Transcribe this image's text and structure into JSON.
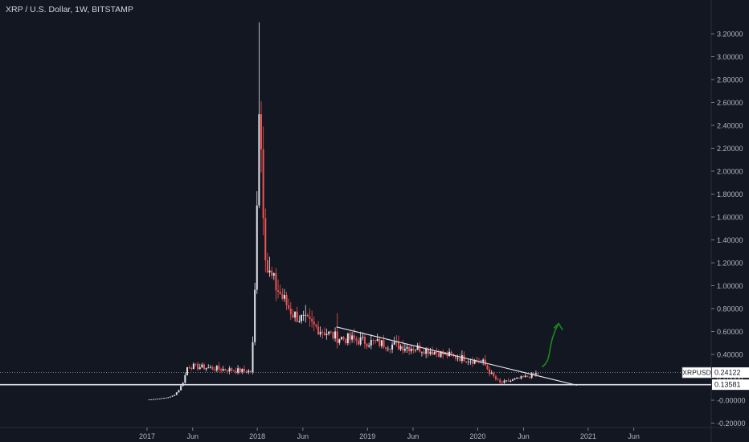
{
  "header": {
    "title": "XRP / U.S. Dollar, 1W, BITSTAMP"
  },
  "chart_data": {
    "type": "candlestick",
    "symbol": "XRPUSD",
    "interval": "1W",
    "exchange": "BITSTAMP",
    "title": "XRP / U.S. Dollar, 1W, BITSTAMP",
    "ylim": [
      -0.2,
      3.3
    ],
    "y_ticks": [
      "3.20000",
      "3.00000",
      "2.80000",
      "2.60000",
      "2.40000",
      "2.20000",
      "2.00000",
      "1.80000",
      "1.60000",
      "1.40000",
      "1.20000",
      "1.00000",
      "0.80000",
      "0.60000",
      "0.40000",
      "0.20000",
      "-0.00000",
      "-0.20000"
    ],
    "x_ticks": [
      {
        "label": "2017",
        "date": "2017-01-01"
      },
      {
        "label": "Jun",
        "date": "2017-06-01"
      },
      {
        "label": "2018",
        "date": "2018-01-01"
      },
      {
        "label": "Jun",
        "date": "2018-06-01"
      },
      {
        "label": "2019",
        "date": "2019-01-01"
      },
      {
        "label": "Jun",
        "date": "2019-06-01"
      },
      {
        "label": "2020",
        "date": "2020-01-01"
      },
      {
        "label": "Jun",
        "date": "2020-06-01"
      },
      {
        "label": "2021",
        "date": "2021-01-01"
      },
      {
        "label": "Jun",
        "date": "2021-06-01"
      }
    ],
    "last_price": {
      "label": "XRPUSD",
      "value": 0.24122
    },
    "support_level": {
      "value": 0.13581
    },
    "trendline": {
      "start": {
        "date": "2018-09-20",
        "value": 0.64
      },
      "end": {
        "date": "2020-11-25",
        "value": 0.13
      }
    },
    "projection_arrow": {
      "from": {
        "date": "2020-08-01",
        "value": 0.29
      },
      "to": {
        "date": "2020-09-25",
        "value": 0.67
      }
    },
    "key_points": [
      {
        "date": "2017-01-01",
        "close": 0.006
      },
      {
        "date": "2017-03-20",
        "close": 0.03
      },
      {
        "date": "2017-05-15",
        "close": 0.3
      },
      {
        "date": "2017-12-10",
        "close": 0.25
      },
      {
        "date": "2018-01-01",
        "close": 2.0
      },
      {
        "date": "2018-01-08",
        "high": 3.3,
        "close": 2.75
      },
      {
        "date": "2018-02-01",
        "close": 1.15
      },
      {
        "date": "2018-05-01",
        "close": 0.75
      },
      {
        "date": "2018-09-20",
        "high": 0.76,
        "close": 0.55
      },
      {
        "date": "2019-07-01",
        "close": 0.45
      },
      {
        "date": "2020-01-20",
        "close": 0.33
      },
      {
        "date": "2020-03-15",
        "close": 0.15
      },
      {
        "date": "2020-07-25",
        "close": 0.24
      }
    ],
    "grid": false,
    "legend": "none"
  },
  "colors": {
    "background": "#131722",
    "up": "#e0e3eb",
    "down": "#ef5350",
    "axis_text": "#b2b5be",
    "line": "#e0e3eb",
    "arrow": "#1b8a1b"
  }
}
